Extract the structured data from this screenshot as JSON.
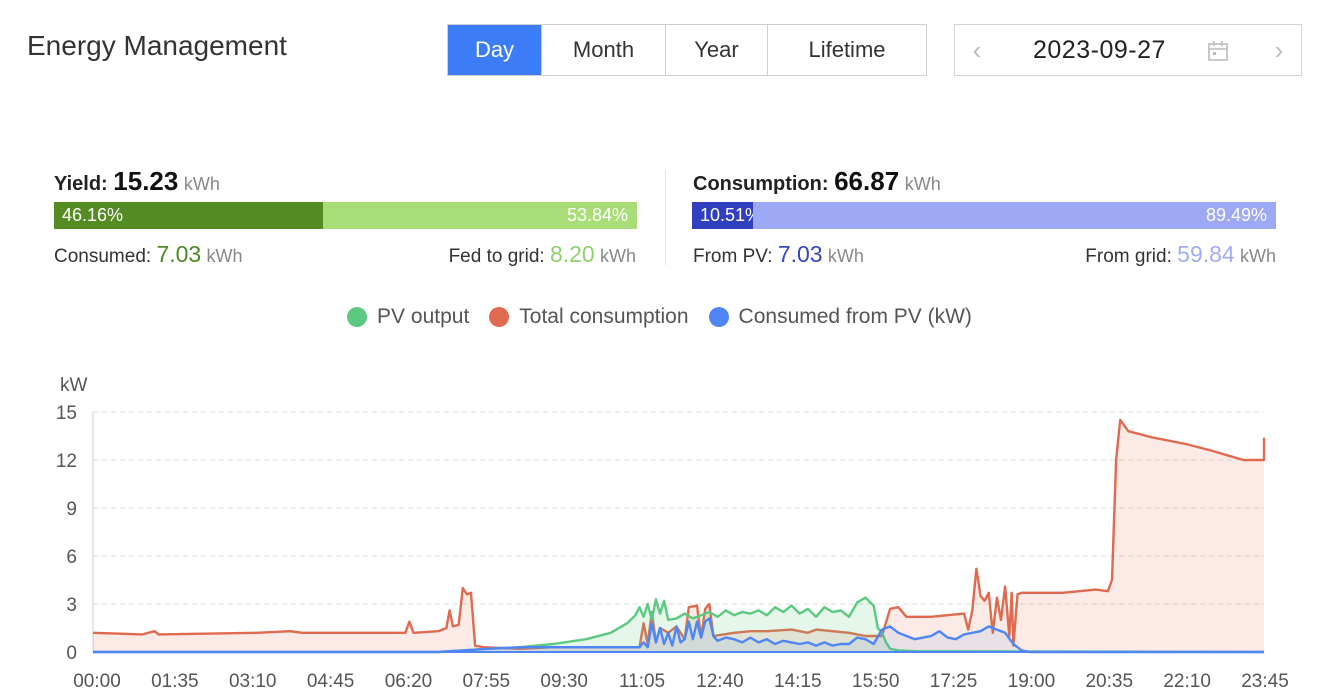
{
  "header": {
    "title": "Energy Management",
    "tabs": [
      "Day",
      "Month",
      "Year",
      "Lifetime"
    ],
    "active_tab": "Day",
    "date": "2023-09-27"
  },
  "yield": {
    "label": "Yield:",
    "value": "15.23",
    "unit": "kWh",
    "consumed_pct": "46.16%",
    "fed_pct": "53.84%",
    "consumed_pct_value": 46.16,
    "consumed_label": "Consumed:",
    "consumed_value": "7.03",
    "consumed_unit": "kWh",
    "fed_label": "Fed to grid:",
    "fed_value": "8.20",
    "fed_unit": "kWh",
    "colors": {
      "dark": "#548b22",
      "light": "#a8dd78",
      "consumed_text": "#4c8a23",
      "fed_text": "#8fd16a"
    }
  },
  "consumption": {
    "label": "Consumption:",
    "value": "66.87",
    "unit": "kWh",
    "pv_pct": "10.51%",
    "grid_pct": "89.49%",
    "pv_pct_value": 10.51,
    "pv_label": "From PV:",
    "pv_value": "7.03",
    "pv_unit": "kWh",
    "grid_label": "From grid:",
    "grid_value": "59.84",
    "grid_unit": "kWh",
    "colors": {
      "dark": "#2f3fc0",
      "light": "#9ea9f6",
      "pv_text": "#3446c2",
      "grid_text": "#a2acf4"
    }
  },
  "chart_data": {
    "type": "line",
    "ylabel": "kW",
    "ylim": [
      0,
      15
    ],
    "yticks": [
      "0",
      "3",
      "6",
      "9",
      "12",
      "15"
    ],
    "xticks": [
      "00:00",
      "01:35",
      "03:10",
      "04:45",
      "06:20",
      "07:55",
      "09:30",
      "11:05",
      "12:40",
      "14:15",
      "15:50",
      "17:25",
      "19:00",
      "20:35",
      "22:10",
      "23:45"
    ],
    "grid": true,
    "legend": [
      "PV output",
      "Total consumption",
      "Consumed from PV (kW)"
    ],
    "series": [
      {
        "name": "PV output",
        "color": "#5bc97f",
        "points": [
          [
            0,
            0
          ],
          [
            420,
            0
          ],
          [
            450,
            0.1
          ],
          [
            480,
            0.2
          ],
          [
            520,
            0.3
          ],
          [
            560,
            0.5
          ],
          [
            600,
            0.8
          ],
          [
            630,
            1.2
          ],
          [
            650,
            1.8
          ],
          [
            660,
            2.3
          ],
          [
            665,
            2.8
          ],
          [
            670,
            2.2
          ],
          [
            675,
            3.0
          ],
          [
            680,
            2.0
          ],
          [
            685,
            3.3
          ],
          [
            690,
            2.4
          ],
          [
            695,
            3.2
          ],
          [
            700,
            2.0
          ],
          [
            710,
            2.1
          ],
          [
            720,
            2.4
          ],
          [
            730,
            2.1
          ],
          [
            740,
            2.3
          ],
          [
            750,
            2.5
          ],
          [
            760,
            2.2
          ],
          [
            770,
            2.6
          ],
          [
            780,
            2.3
          ],
          [
            790,
            2.5
          ],
          [
            800,
            2.4
          ],
          [
            810,
            2.6
          ],
          [
            820,
            2.3
          ],
          [
            830,
            2.8
          ],
          [
            840,
            2.5
          ],
          [
            850,
            2.9
          ],
          [
            860,
            2.4
          ],
          [
            870,
            2.7
          ],
          [
            880,
            2.2
          ],
          [
            890,
            2.8
          ],
          [
            900,
            2.5
          ],
          [
            910,
            2.6
          ],
          [
            920,
            2.2
          ],
          [
            930,
            3.1
          ],
          [
            940,
            3.4
          ],
          [
            950,
            2.9
          ],
          [
            955,
            1.5
          ],
          [
            960,
            1.2
          ],
          [
            965,
            0.6
          ],
          [
            970,
            0.2
          ],
          [
            980,
            0.1
          ],
          [
            1000,
            0.05
          ],
          [
            1440,
            0
          ]
        ]
      },
      {
        "name": "Total consumption",
        "color": "#e06a50",
        "points": [
          [
            0,
            1.2
          ],
          [
            60,
            1.1
          ],
          [
            75,
            1.3
          ],
          [
            80,
            1.1
          ],
          [
            200,
            1.2
          ],
          [
            240,
            1.3
          ],
          [
            255,
            1.2
          ],
          [
            380,
            1.2
          ],
          [
            385,
            1.9
          ],
          [
            390,
            1.2
          ],
          [
            420,
            1.3
          ],
          [
            430,
            1.5
          ],
          [
            434,
            2.6
          ],
          [
            438,
            1.6
          ],
          [
            445,
            1.7
          ],
          [
            450,
            4.0
          ],
          [
            455,
            3.6
          ],
          [
            460,
            3.7
          ],
          [
            465,
            0.4
          ],
          [
            475,
            0.3
          ],
          [
            520,
            0.2
          ],
          [
            560,
            0.3
          ],
          [
            600,
            0.3
          ],
          [
            650,
            0.3
          ],
          [
            665,
            0.3
          ],
          [
            670,
            1.8
          ],
          [
            675,
            0.5
          ],
          [
            680,
            2.5
          ],
          [
            685,
            0.6
          ],
          [
            690,
            1.5
          ],
          [
            700,
            1.2
          ],
          [
            710,
            1.6
          ],
          [
            720,
            0.8
          ],
          [
            725,
            2.8
          ],
          [
            735,
            2.9
          ],
          [
            740,
            0.9
          ],
          [
            745,
            2.7
          ],
          [
            750,
            3.0
          ],
          [
            755,
            1.0
          ],
          [
            780,
            1.2
          ],
          [
            800,
            1.3
          ],
          [
            820,
            1.3
          ],
          [
            850,
            1.4
          ],
          [
            870,
            1.2
          ],
          [
            880,
            1.4
          ],
          [
            900,
            1.3
          ],
          [
            920,
            1.2
          ],
          [
            940,
            1.0
          ],
          [
            960,
            1.0
          ],
          [
            970,
            2.7
          ],
          [
            980,
            2.8
          ],
          [
            990,
            2.2
          ],
          [
            1020,
            2.2
          ],
          [
            1040,
            2.3
          ],
          [
            1060,
            2.4
          ],
          [
            1065,
            1.4
          ],
          [
            1070,
            2.6
          ],
          [
            1075,
            5.2
          ],
          [
            1080,
            3.5
          ],
          [
            1085,
            3.2
          ],
          [
            1090,
            3.7
          ],
          [
            1095,
            1.2
          ],
          [
            1100,
            3.4
          ],
          [
            1105,
            2.0
          ],
          [
            1110,
            4.1
          ],
          [
            1115,
            1.0
          ],
          [
            1118,
            3.7
          ],
          [
            1120,
            0.4
          ],
          [
            1125,
            3.6
          ],
          [
            1130,
            3.7
          ],
          [
            1180,
            3.7
          ],
          [
            1220,
            3.9
          ],
          [
            1235,
            3.8
          ],
          [
            1240,
            4.5
          ],
          [
            1245,
            12.0
          ],
          [
            1250,
            14.5
          ],
          [
            1260,
            13.8
          ],
          [
            1290,
            13.4
          ],
          [
            1330,
            13.0
          ],
          [
            1360,
            12.6
          ],
          [
            1380,
            12.3
          ],
          [
            1400,
            12.0
          ],
          [
            1425,
            12.0
          ],
          [
            1430,
            13.4
          ]
        ]
      },
      {
        "name": "Consumed from PV (kW)",
        "color": "#4f86f5",
        "points": [
          [
            0,
            0
          ],
          [
            420,
            0
          ],
          [
            450,
            0.1
          ],
          [
            480,
            0.2
          ],
          [
            520,
            0.3
          ],
          [
            560,
            0.3
          ],
          [
            600,
            0.3
          ],
          [
            630,
            0.3
          ],
          [
            650,
            0.3
          ],
          [
            665,
            0.3
          ],
          [
            670,
            0.6
          ],
          [
            675,
            0.3
          ],
          [
            680,
            1.8
          ],
          [
            685,
            0.6
          ],
          [
            690,
            1.5
          ],
          [
            695,
            0.5
          ],
          [
            700,
            1.2
          ],
          [
            705,
            0.4
          ],
          [
            710,
            1.6
          ],
          [
            715,
            0.6
          ],
          [
            720,
            0.8
          ],
          [
            725,
            1.9
          ],
          [
            730,
            0.8
          ],
          [
            735,
            1.9
          ],
          [
            740,
            0.9
          ],
          [
            745,
            1.9
          ],
          [
            750,
            2.1
          ],
          [
            755,
            1.0
          ],
          [
            760,
            0.7
          ],
          [
            770,
            0.9
          ],
          [
            780,
            0.8
          ],
          [
            790,
            0.6
          ],
          [
            800,
            0.9
          ],
          [
            810,
            0.6
          ],
          [
            820,
            0.8
          ],
          [
            830,
            0.5
          ],
          [
            840,
            0.7
          ],
          [
            850,
            0.6
          ],
          [
            860,
            0.5
          ],
          [
            870,
            0.6
          ],
          [
            880,
            0.4
          ],
          [
            890,
            0.6
          ],
          [
            900,
            0.4
          ],
          [
            910,
            0.5
          ],
          [
            920,
            0.5
          ],
          [
            930,
            0.9
          ],
          [
            940,
            0.8
          ],
          [
            950,
            0.5
          ],
          [
            960,
            1.4
          ],
          [
            970,
            1.6
          ],
          [
            980,
            1.2
          ],
          [
            990,
            1.0
          ],
          [
            1000,
            0.8
          ],
          [
            1020,
            1.0
          ],
          [
            1030,
            1.3
          ],
          [
            1040,
            0.9
          ],
          [
            1050,
            0.8
          ],
          [
            1060,
            1.1
          ],
          [
            1070,
            1.2
          ],
          [
            1080,
            1.3
          ],
          [
            1090,
            1.6
          ],
          [
            1100,
            1.4
          ],
          [
            1110,
            1.2
          ],
          [
            1120,
            0.5
          ],
          [
            1130,
            0.1
          ],
          [
            1140,
            0
          ],
          [
            1440,
            0
          ]
        ]
      }
    ]
  }
}
